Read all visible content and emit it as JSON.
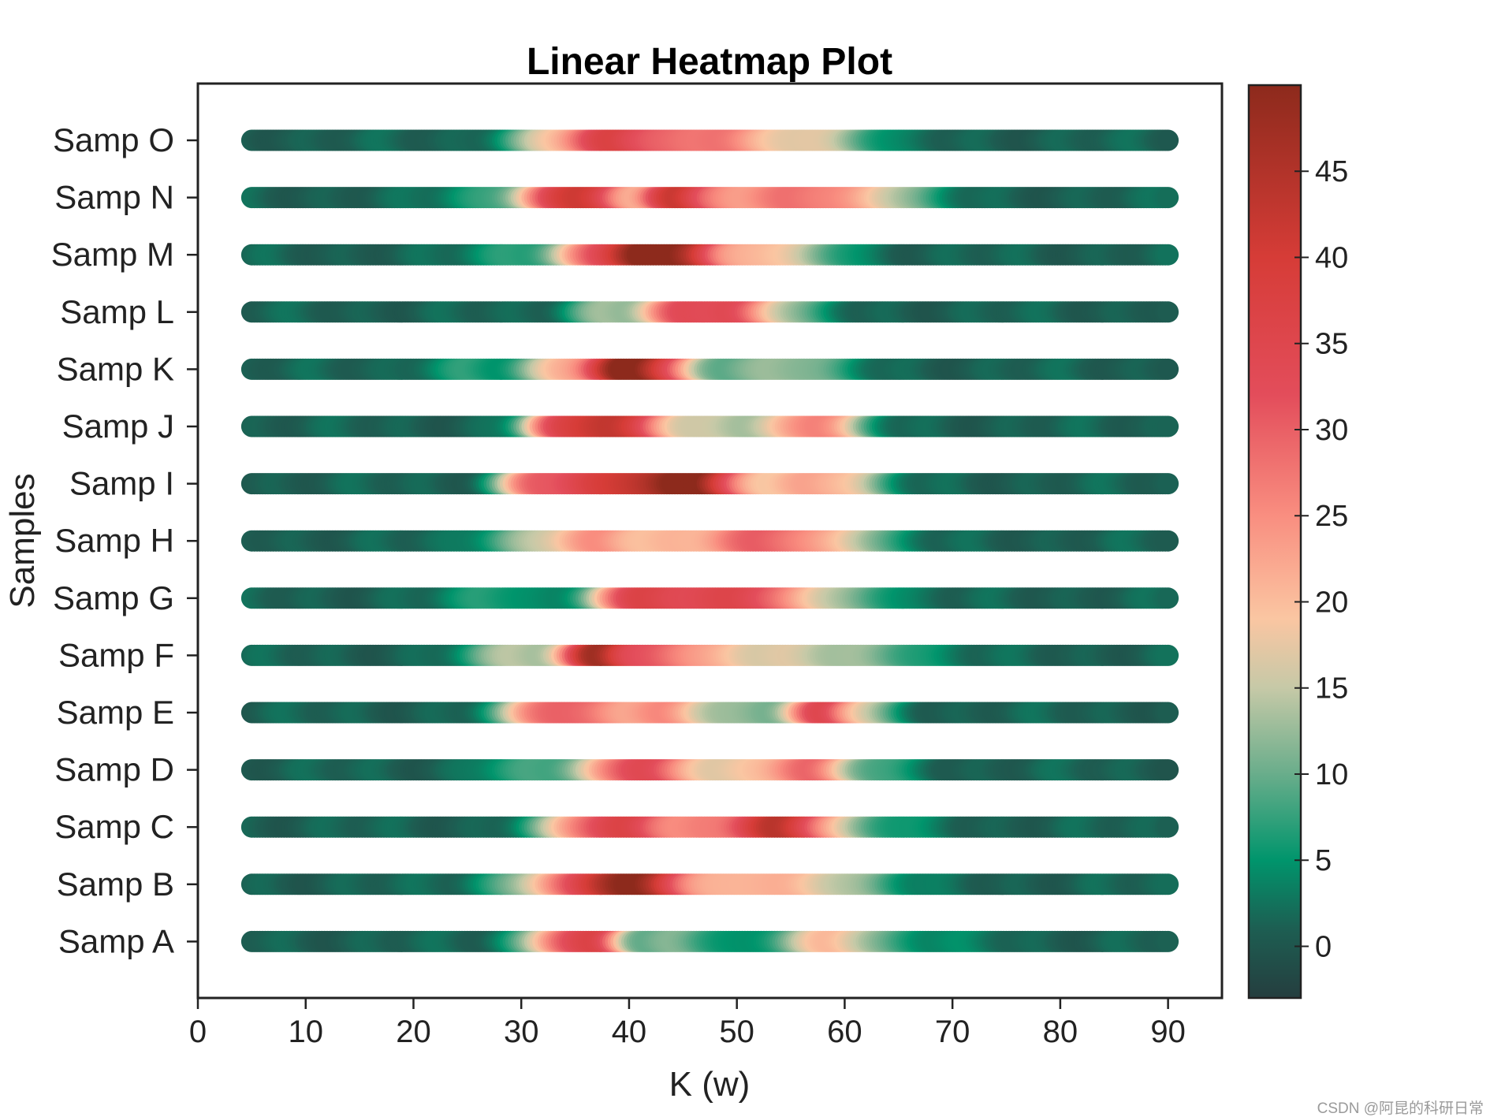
{
  "chart_data": {
    "type": "heatmap",
    "title": "Linear Heatmap Plot",
    "xlabel": "K (w)",
    "ylabel": "Samples",
    "xlim": [
      0,
      95
    ],
    "x_ticks": [
      0,
      10,
      20,
      30,
      40,
      50,
      60,
      70,
      80,
      90
    ],
    "x_range": [
      5,
      90
    ],
    "colorbar": {
      "min": -3,
      "max": 50,
      "ticks": [
        0,
        5,
        10,
        15,
        20,
        25,
        30,
        35,
        40,
        45
      ],
      "colors": [
        {
          "v": -3,
          "c": "#253e3f"
        },
        {
          "v": 1,
          "c": "#1d5e52"
        },
        {
          "v": 5,
          "c": "#00956c"
        },
        {
          "v": 10,
          "c": "#69ad8b"
        },
        {
          "v": 15,
          "c": "#c6c9a7"
        },
        {
          "v": 19,
          "c": "#fac6a2"
        },
        {
          "v": 25,
          "c": "#f98e80"
        },
        {
          "v": 32,
          "c": "#e34d5b"
        },
        {
          "v": 40,
          "c": "#d63c37"
        },
        {
          "v": 50,
          "c": "#8d2a1c"
        }
      ]
    },
    "samples": [
      {
        "name": "Samp A",
        "peaks": [
          [
            35,
            30,
            3
          ],
          [
            38,
            12,
            1.5
          ],
          [
            45,
            10,
            3
          ],
          [
            59,
            18,
            3.5
          ],
          [
            67,
            3,
            5
          ]
        ]
      },
      {
        "name": "Samp B",
        "peaks": [
          [
            35,
            22,
            4.5
          ],
          [
            40,
            30,
            3
          ],
          [
            44,
            18,
            3
          ],
          [
            52,
            18,
            4
          ],
          [
            60,
            12,
            4
          ]
        ]
      },
      {
        "name": "Samp C",
        "peaks": [
          [
            36,
            20,
            3
          ],
          [
            41,
            28,
            3
          ],
          [
            47,
            16,
            2.5
          ],
          [
            53,
            32,
            3
          ],
          [
            57,
            18,
            3
          ],
          [
            63,
            5,
            4
          ]
        ]
      },
      {
        "name": "Samp D",
        "peaks": [
          [
            30,
            5,
            3
          ],
          [
            38,
            15,
            3
          ],
          [
            42,
            23,
            2.5
          ],
          [
            50,
            16,
            5
          ],
          [
            57,
            22,
            2.5
          ],
          [
            63,
            6,
            3
          ]
        ]
      },
      {
        "name": "Samp E",
        "peaks": [
          [
            32,
            22,
            2.5
          ],
          [
            37,
            22,
            3
          ],
          [
            44,
            21,
            3
          ],
          [
            52,
            10,
            3
          ],
          [
            58,
            28,
            2
          ],
          [
            62,
            12,
            2.5
          ]
        ]
      },
      {
        "name": "Samp F",
        "peaks": [
          [
            30,
            14,
            3
          ],
          [
            37,
            40,
            2
          ],
          [
            42,
            22,
            3
          ],
          [
            48,
            16,
            4
          ],
          [
            56,
            11,
            4
          ],
          [
            64,
            8,
            4
          ]
        ]
      },
      {
        "name": "Samp G",
        "peaks": [
          [
            28,
            6,
            3
          ],
          [
            41,
            30,
            3
          ],
          [
            46,
            18,
            3
          ],
          [
            50,
            23,
            2.5
          ],
          [
            55,
            20,
            3
          ],
          [
            62,
            8,
            3
          ]
        ]
      },
      {
        "name": "Samp H",
        "peaks": [
          [
            30,
            8,
            3
          ],
          [
            37,
            21,
            3.5
          ],
          [
            44,
            14,
            3
          ],
          [
            50,
            19,
            3
          ],
          [
            55,
            20,
            3
          ],
          [
            61,
            14,
            3
          ]
        ]
      },
      {
        "name": "Samp I",
        "peaks": [
          [
            31,
            18,
            2
          ],
          [
            36,
            26,
            3.5
          ],
          [
            41,
            27,
            3
          ],
          [
            46,
            42,
            2.5
          ],
          [
            50,
            13,
            2.5
          ],
          [
            56,
            18,
            3
          ],
          [
            61,
            14,
            2.5
          ]
        ]
      },
      {
        "name": "Samp J",
        "peaks": [
          [
            33,
            20,
            2
          ],
          [
            37,
            32,
            2.5
          ],
          [
            41,
            24,
            2.5
          ],
          [
            48,
            12,
            4
          ],
          [
            56,
            14,
            3
          ],
          [
            59,
            16,
            2.5
          ]
        ]
      },
      {
        "name": "Samp K",
        "peaks": [
          [
            25,
            5,
            3
          ],
          [
            34,
            18,
            2.5
          ],
          [
            40,
            48,
            2.5
          ],
          [
            44,
            17,
            2
          ],
          [
            51,
            9,
            4
          ],
          [
            57,
            8,
            3
          ]
        ]
      },
      {
        "name": "Samp L",
        "peaks": [
          [
            38,
            11,
            2.5
          ],
          [
            45,
            27,
            2.5
          ],
          [
            50,
            27,
            2.5
          ],
          [
            55,
            10,
            2.5
          ]
        ]
      },
      {
        "name": "Samp M",
        "peaks": [
          [
            30,
            6,
            3
          ],
          [
            37,
            24,
            2.5
          ],
          [
            42,
            44,
            2.5
          ],
          [
            46,
            28,
            2
          ],
          [
            51,
            15,
            3
          ],
          [
            56,
            10,
            4
          ]
        ]
      },
      {
        "name": "Samp N",
        "peaks": [
          [
            27,
            5,
            3
          ],
          [
            33,
            23,
            2.5
          ],
          [
            37,
            31,
            2.5
          ],
          [
            44,
            32,
            2
          ],
          [
            48,
            20,
            3
          ],
          [
            54,
            15,
            3
          ],
          [
            59,
            20,
            3.5
          ],
          [
            65,
            10,
            3
          ]
        ]
      },
      {
        "name": "Samp O",
        "peaks": [
          [
            33,
            14,
            3
          ],
          [
            38,
            25,
            2.5
          ],
          [
            43,
            25,
            3
          ],
          [
            49,
            22,
            2.5
          ],
          [
            55,
            13,
            3
          ],
          [
            60,
            10,
            3
          ]
        ]
      }
    ]
  },
  "watermark": "CSDN @阿昆的科研日常"
}
